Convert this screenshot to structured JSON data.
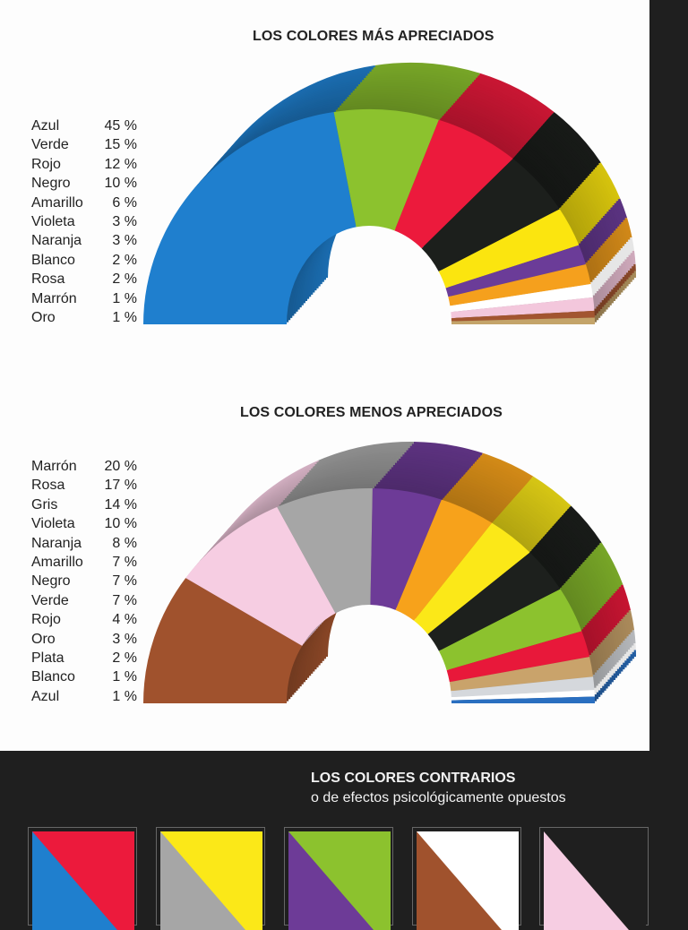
{
  "chart_data": [
    {
      "type": "pie",
      "title": "LOS COLORES MÁS APRECIADOS",
      "categories": [
        "Azul",
        "Verde",
        "Rojo",
        "Negro",
        "Amarillo",
        "Violeta",
        "Naranja",
        "Blanco",
        "Rosa",
        "Marrón",
        "Oro"
      ],
      "values": [
        45,
        15,
        12,
        10,
        6,
        3,
        3,
        2,
        2,
        1,
        1
      ],
      "value_labels": [
        "45 %",
        "15 %",
        "12 %",
        "10 %",
        "6 %",
        "3 %",
        "3 %",
        "2 %",
        "2 %",
        "1 %",
        "1 %"
      ],
      "colors": [
        "#1f7fce",
        "#8cc22e",
        "#ec1a3c",
        "#1c1f1c",
        "#fbe50f",
        "#6b3c98",
        "#f5a01d",
        "#ffffff",
        "#f3c7dc",
        "#a25530",
        "#c4a46a"
      ],
      "style": "3d half-donut",
      "legend": "left"
    },
    {
      "type": "pie",
      "title": "LOS COLORES MENOS APRECIADOS",
      "categories": [
        "Marrón",
        "Rosa",
        "Gris",
        "Violeta",
        "Naranja",
        "Amarillo",
        "Negro",
        "Verde",
        "Rojo",
        "Oro",
        "Plata",
        "Blanco",
        "Azul"
      ],
      "values": [
        20,
        17,
        14,
        10,
        8,
        7,
        7,
        7,
        4,
        3,
        2,
        1,
        1
      ],
      "value_labels": [
        "20 %",
        "17 %",
        "14 %",
        "10 %",
        "8 %",
        "7 %",
        "7 %",
        "7 %",
        "4 %",
        "3 %",
        "2 %",
        "1 %",
        "1 %"
      ],
      "colors": [
        "#a0522d",
        "#f6cde2",
        "#a6a6a6",
        "#6d3b97",
        "#f7a21b",
        "#fbe818",
        "#1d201d",
        "#8cc22e",
        "#e8183a",
        "#c9a36b",
        "#d5d8dc",
        "#ffffff",
        "#2a6fc0"
      ],
      "style": "3d half-donut",
      "legend": "left"
    }
  ],
  "contrarios": {
    "title": "LOS COLORES CONTRARIOS",
    "subtitle": "o de efectos psicológicamente opuestos",
    "pairs": [
      {
        "a": "#1f7fce",
        "b": "#ec1a3c"
      },
      {
        "a": "#a6a6a6",
        "b": "#fbe818"
      },
      {
        "a": "#6d3b97",
        "b": "#8cc22e"
      },
      {
        "a": "#a0522d",
        "b": "#ffffff"
      },
      {
        "a": "#f6cde2",
        "b": "#1f1f1f"
      }
    ]
  }
}
